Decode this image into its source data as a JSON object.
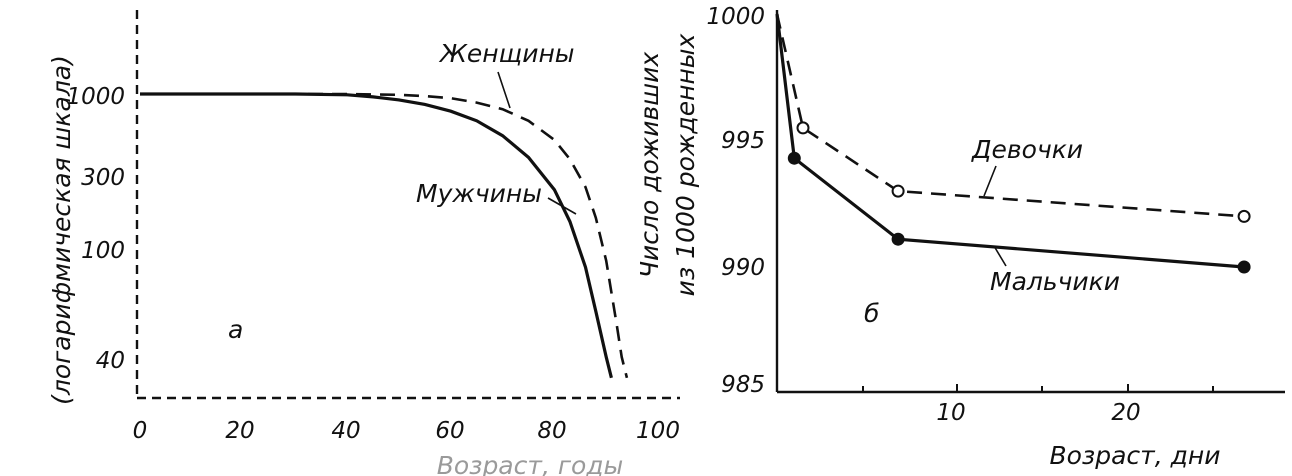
{
  "chart_data": [
    {
      "type": "line",
      "panel_label": "а",
      "ylabel": "(логарифмическая шкала)",
      "xlabel": "Возраст, годы",
      "scale_y": "log",
      "xlim": [
        0,
        100
      ],
      "ylim": [
        30,
        1000
      ],
      "xticks": [
        "0",
        "20",
        "40",
        "60",
        "80",
        "100"
      ],
      "yticks": [
        {
          "v": 1000,
          "label": "1000"
        },
        {
          "v": 300,
          "label": "300"
        },
        {
          "v": 100,
          "label": "100"
        },
        {
          "v": 40,
          "label": "40"
        }
      ],
      "series": [
        {
          "name": "Женщины",
          "style": "dashed",
          "points": [
            [
              0,
              1000
            ],
            [
              10,
              1000
            ],
            [
              20,
              1000
            ],
            [
              30,
              1000
            ],
            [
              40,
              1000
            ],
            [
              50,
              990
            ],
            [
              55,
              975
            ],
            [
              60,
              950
            ],
            [
              65,
              900
            ],
            [
              70,
              830
            ],
            [
              75,
              720
            ],
            [
              80,
              570
            ],
            [
              83,
              450
            ],
            [
              86,
              320
            ],
            [
              88,
              220
            ],
            [
              90,
              130
            ],
            [
              92,
              60
            ],
            [
              93,
              40
            ],
            [
              94,
              31
            ]
          ]
        },
        {
          "name": "Мужчины",
          "style": "solid",
          "points": [
            [
              0,
              1000
            ],
            [
              10,
              1000
            ],
            [
              20,
              1000
            ],
            [
              30,
              1000
            ],
            [
              40,
              990
            ],
            [
              45,
              965
            ],
            [
              50,
              930
            ],
            [
              55,
              880
            ],
            [
              60,
              810
            ],
            [
              65,
              720
            ],
            [
              70,
              600
            ],
            [
              75,
              460
            ],
            [
              80,
              310
            ],
            [
              83,
              210
            ],
            [
              86,
              120
            ],
            [
              88,
              70
            ],
            [
              90,
              40
            ],
            [
              91,
              31
            ]
          ]
        }
      ]
    },
    {
      "type": "line",
      "panel_label": "б",
      "ylabel": "Число доживших из 1000 рожденных",
      "xlabel": "Возраст, дни",
      "xlim": [
        0,
        30
      ],
      "ylim": [
        985,
        1000
      ],
      "xticks": [
        "10",
        "20"
      ],
      "yticks": [
        "1000",
        "995",
        "990",
        "985"
      ],
      "series": [
        {
          "name": "Девочки",
          "style": "dashed",
          "marker": "open-circle",
          "points": [
            [
              0,
              1000
            ],
            [
              1.5,
              995.5
            ],
            [
              7,
              993
            ],
            [
              27,
              992
            ]
          ]
        },
        {
          "name": "Мальчики",
          "style": "solid",
          "marker": "filled-circle",
          "points": [
            [
              0,
              1000
            ],
            [
              1,
              994.3
            ],
            [
              7,
              991.1
            ],
            [
              27,
              990
            ]
          ]
        }
      ]
    }
  ]
}
